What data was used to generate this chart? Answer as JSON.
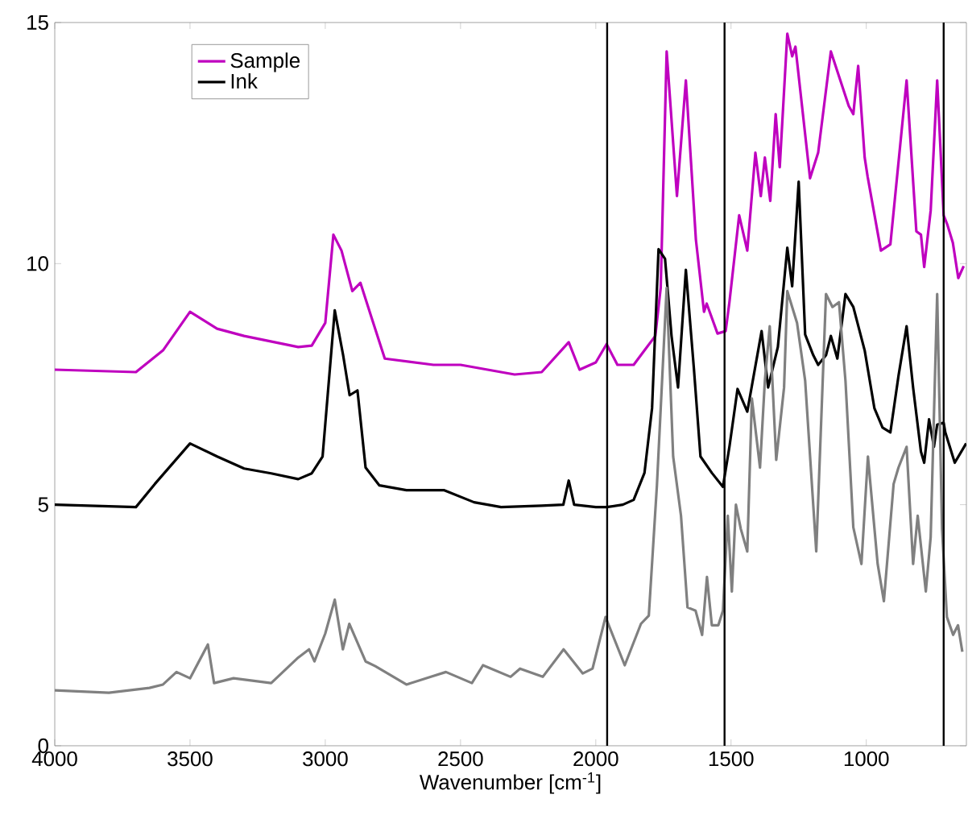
{
  "chart_data": {
    "type": "line",
    "xlabel": "Wavenumber [cm$^{-1}$]",
    "xlim": [
      4000,
      630
    ],
    "xticks": [
      4000,
      3500,
      3000,
      2500,
      2000,
      1500,
      1000
    ],
    "ylim": [
      0,
      15
    ],
    "yticks": [
      0,
      5,
      10,
      15
    ],
    "legend": "top left",
    "grid": false,
    "marker": "none",
    "line_style": "solid",
    "x": [
      4000,
      3700,
      3600,
      3500,
      3400,
      3300,
      3100,
      3050,
      3000,
      2970,
      2940,
      2900,
      2870,
      2830,
      2780,
      2600,
      2500,
      2400,
      2300,
      2200,
      2100,
      2060,
      2000,
      1960,
      1920,
      1860,
      1820,
      1780,
      1760,
      1738,
      1700,
      1667,
      1630,
      1600,
      1590,
      1550,
      1520,
      1506,
      1470,
      1440,
      1410,
      1390,
      1375,
      1355,
      1335,
      1320,
      1292,
      1274,
      1262,
      1208,
      1178,
      1131,
      1065,
      1048,
      1030,
      1006,
      995,
      946,
      911,
      851,
      815,
      798,
      786,
      762,
      738,
      714,
      700,
      680,
      660,
      640
    ],
    "series": [
      {
        "name": "Sample",
        "color": "#bf00bf",
        "values": [
          7.8,
          7.75,
          8.2,
          9.0,
          8.65,
          8.5,
          8.27,
          8.3,
          8.77,
          10.6,
          10.27,
          9.43,
          9.6,
          8.9,
          8.03,
          7.9,
          7.9,
          7.8,
          7.7,
          7.75,
          8.37,
          7.8,
          7.95,
          8.33,
          7.9,
          7.9,
          8.2,
          8.5,
          9.5,
          14.4,
          11.4,
          13.8,
          10.5,
          9.0,
          9.17,
          8.55,
          8.6,
          9.2,
          11.0,
          10.27,
          12.3,
          11.4,
          12.2,
          11.3,
          13.1,
          12.0,
          14.77,
          14.3,
          14.5,
          11.77,
          12.3,
          14.4,
          13.27,
          13.1,
          14.1,
          12.2,
          11.8,
          10.27,
          10.4,
          13.8,
          10.67,
          10.6,
          9.93,
          11.1,
          13.8,
          11.0,
          10.8,
          10.43,
          9.7,
          9.95
        ]
      },
      {
        "name": "Ink",
        "color": "#000000",
        "x": [
          4000,
          3700,
          3630,
          3500,
          3400,
          3300,
          3200,
          3100,
          3050,
          3010,
          2965,
          2934,
          2910,
          2881,
          2851,
          2800,
          2700,
          2560,
          2450,
          2400,
          2350,
          2200,
          2120,
          2100,
          2080,
          2000,
          1960,
          1900,
          1860,
          1820,
          1792,
          1768,
          1744,
          1720,
          1696,
          1667,
          1637,
          1613,
          1571,
          1530,
          1506,
          1476,
          1440,
          1387,
          1363,
          1327,
          1292,
          1274,
          1250,
          1226,
          1196,
          1178,
          1149,
          1131,
          1107,
          1077,
          1048,
          1006,
          970,
          940,
          911,
          881,
          851,
          827,
          798,
          786,
          768,
          750,
          738,
          714,
          708,
          673,
          631
        ],
        "values": [
          5.0,
          4.95,
          5.43,
          6.27,
          6.0,
          5.75,
          5.65,
          5.53,
          5.65,
          6.0,
          9.03,
          8.1,
          7.27,
          7.37,
          5.77,
          5.4,
          5.3,
          5.3,
          5.05,
          5.0,
          4.95,
          4.98,
          5.0,
          5.5,
          5.0,
          4.95,
          4.95,
          5.0,
          5.1,
          5.66,
          7.0,
          10.3,
          10.1,
          8.5,
          7.43,
          9.87,
          7.8,
          6.0,
          5.66,
          5.37,
          6.2,
          7.4,
          6.93,
          8.6,
          7.43,
          8.27,
          10.33,
          9.53,
          11.7,
          8.53,
          8.1,
          7.9,
          8.1,
          8.5,
          8.03,
          9.37,
          9.1,
          8.2,
          7.0,
          6.6,
          6.5,
          7.67,
          8.7,
          7.43,
          6.1,
          5.87,
          6.77,
          6.2,
          6.66,
          6.7,
          6.5,
          5.87,
          6.27
        ]
      },
      {
        "color": "#808080",
        "x": [
          4000,
          3800,
          3650,
          3600,
          3550,
          3500,
          3434,
          3411,
          3339,
          3200,
          3100,
          3060,
          3040,
          3000,
          2965,
          2935,
          2911,
          2851,
          2815,
          2700,
          2600,
          2554,
          2458,
          2417,
          2315,
          2280,
          2196,
          2119,
          2048,
          2012,
          1964,
          1893,
          1833,
          1804,
          1774,
          1738,
          1714,
          1685,
          1661,
          1631,
          1607,
          1589,
          1571,
          1547,
          1530,
          1512,
          1497,
          1482,
          1464,
          1440,
          1423,
          1393,
          1375,
          1357,
          1333,
          1304,
          1292,
          1256,
          1226,
          1185,
          1149,
          1125,
          1101,
          1077,
          1048,
          1018,
          994,
          958,
          935,
          899,
          881,
          851,
          827,
          810,
          780,
          762,
          738,
          720,
          702,
          679,
          661,
          645
        ],
        "values": [
          1.15,
          1.1,
          1.2,
          1.27,
          1.53,
          1.4,
          2.1,
          1.3,
          1.4,
          1.3,
          1.83,
          2.0,
          1.75,
          2.33,
          3.03,
          2.0,
          2.53,
          1.75,
          1.65,
          1.27,
          1.45,
          1.53,
          1.3,
          1.67,
          1.43,
          1.6,
          1.43,
          2.0,
          1.5,
          1.6,
          2.67,
          1.67,
          2.53,
          2.7,
          5.4,
          9.5,
          6.0,
          4.77,
          2.87,
          2.8,
          2.3,
          3.5,
          2.5,
          2.5,
          2.8,
          4.77,
          3.2,
          5.0,
          4.5,
          4.03,
          7.2,
          5.77,
          7.57,
          8.7,
          5.93,
          7.43,
          9.43,
          8.77,
          7.57,
          4.03,
          9.37,
          9.1,
          9.2,
          7.57,
          4.53,
          3.77,
          6.0,
          3.77,
          3.0,
          5.43,
          5.77,
          6.2,
          3.77,
          4.77,
          3.2,
          4.33,
          9.37,
          4.5,
          2.67,
          2.3,
          2.5,
          1.95
        ]
      }
    ],
    "ref_lines": [
      {
        "axis": "x",
        "value": 1958,
        "color": "#000000"
      },
      {
        "axis": "x",
        "value": 1524,
        "color": "#000000"
      },
      {
        "axis": "x",
        "value": 714,
        "color": "#000000"
      }
    ]
  }
}
